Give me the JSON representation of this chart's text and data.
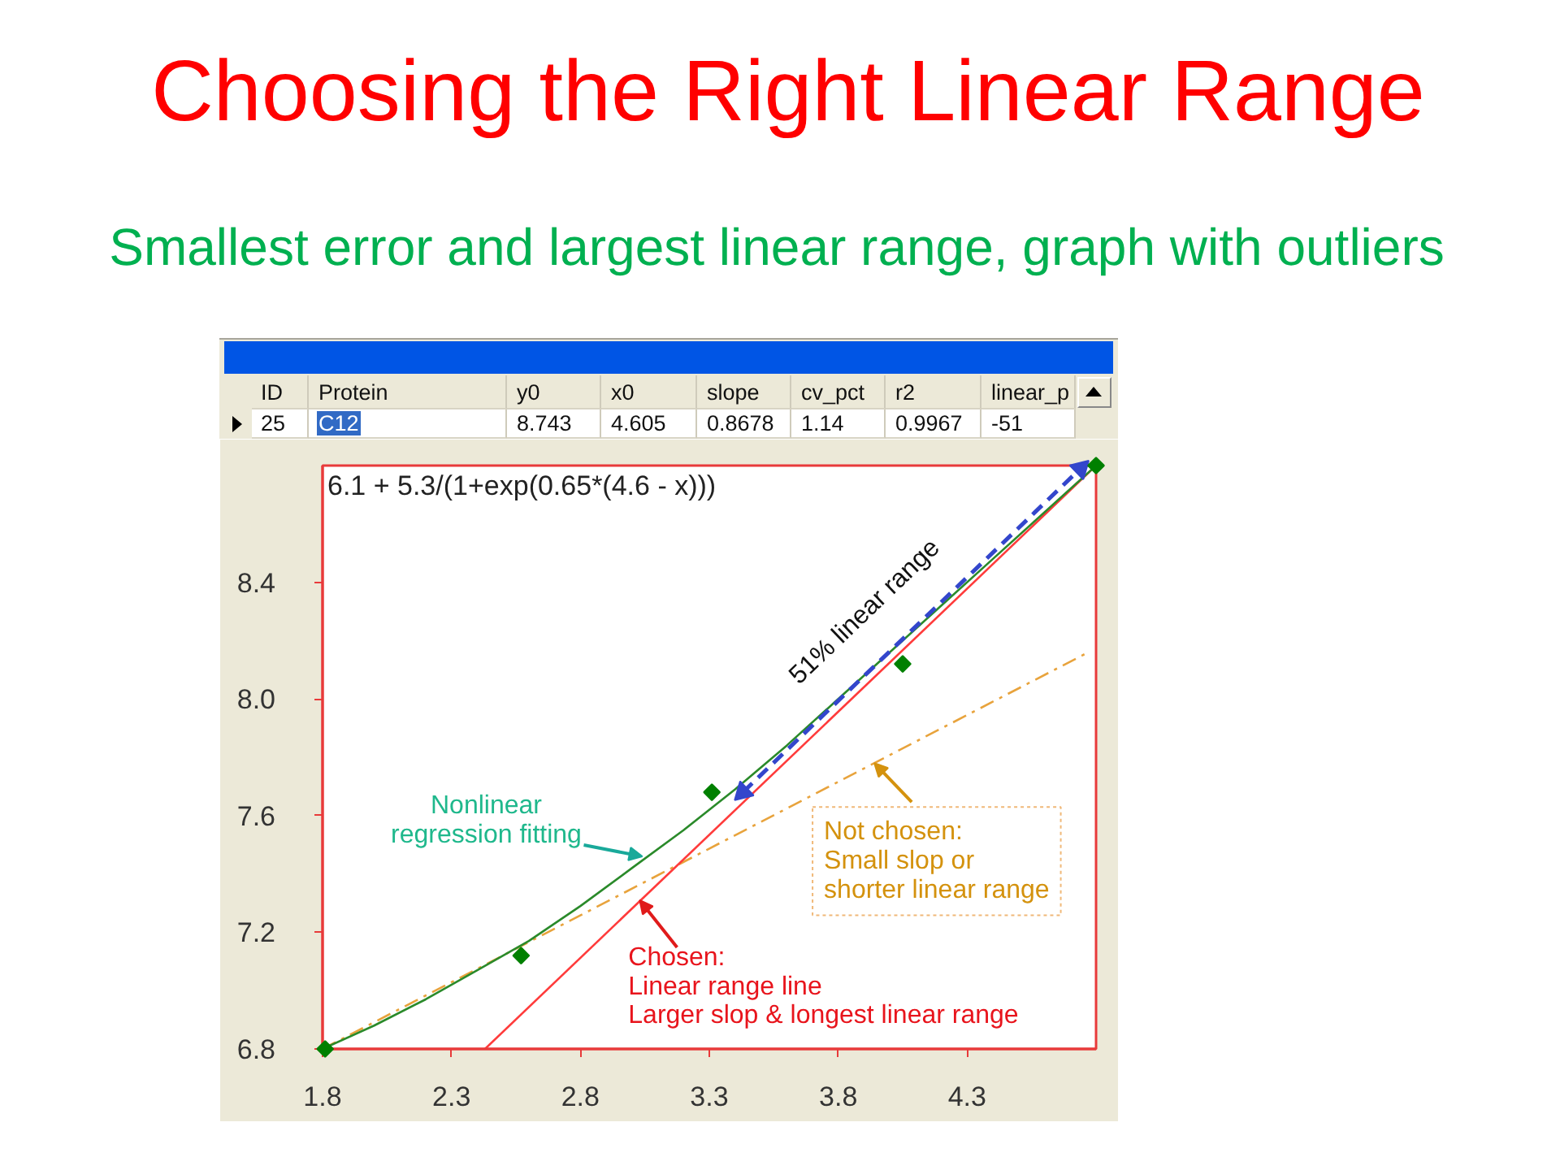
{
  "chart_data": {
    "type": "line",
    "title": "Choosing the Right Linear Range",
    "subtitle": "Smallest error and largest linear range, graph with outliers",
    "xlim": [
      1.8,
      4.8
    ],
    "ylim": [
      6.8,
      8.8
    ],
    "xticks": [
      1.8,
      2.3,
      2.8,
      3.3,
      3.8,
      4.3
    ],
    "yticks": [
      6.8,
      7.2,
      7.6,
      {
        "value": 8.0,
        "label": "8.0"
      },
      8.4
    ],
    "grid": false,
    "legend": false,
    "series": [
      {
        "color": "#e8a33c",
        "line_style": "dashdot",
        "x": [
          1.8,
          4.77
        ],
        "values": [
          6.8,
          8.16
        ]
      },
      {
        "color": "#ff3b3b",
        "line_style": "solid",
        "x": [
          2.43,
          4.8
        ],
        "values": [
          6.8,
          8.8
        ]
      },
      {
        "color": "#2a8a2a",
        "line_style": "solid",
        "x": [
          1.8,
          2.0,
          2.2,
          2.4,
          2.6,
          2.8,
          3.0,
          3.2,
          3.4,
          3.6,
          3.8,
          4.0,
          4.2,
          4.4,
          4.6,
          4.8
        ],
        "values": [
          6.8,
          6.88,
          6.97,
          7.07,
          7.17,
          7.29,
          7.42,
          7.55,
          7.69,
          7.84,
          8.0,
          8.16,
          8.32,
          8.48,
          8.64,
          8.8
        ]
      },
      {
        "name": "51% linear range",
        "color": "#3346cc",
        "line_style": "dashed",
        "marker": "triangle",
        "x": [
          3.43,
          4.74
        ],
        "values": [
          7.68,
          8.79
        ]
      },
      {
        "type": "scatter",
        "color": "#008000",
        "marker": "diamond",
        "x": [
          1.81,
          2.57,
          3.31,
          4.05,
          4.8
        ],
        "values": [
          6.8,
          7.12,
          7.68,
          8.12,
          8.8
        ]
      }
    ],
    "annotations": [
      "ID",
      "Protein",
      "y0",
      "x0",
      "slope",
      "cv_pct",
      "r2",
      "linear_p",
      "25",
      "C12",
      "8.743",
      "4.605",
      "0.8678",
      "1.14",
      "0.9967",
      "-51",
      "6.1 + 5.3/(1+exp(0.65*(4.6 - x)))",
      {
        "text": "Nonlinear\nregression fitting",
        "x": 3.04,
        "y": 7.46
      },
      {
        "text": "Chosen:\nLinear range line\nLarger slop & longest linear range",
        "x": 3.03,
        "y": 7.31
      },
      {
        "text": "Not chosen:\nSmall slop or\nshorter linear range",
        "x": 3.94,
        "y": 7.78
      }
    ]
  }
}
